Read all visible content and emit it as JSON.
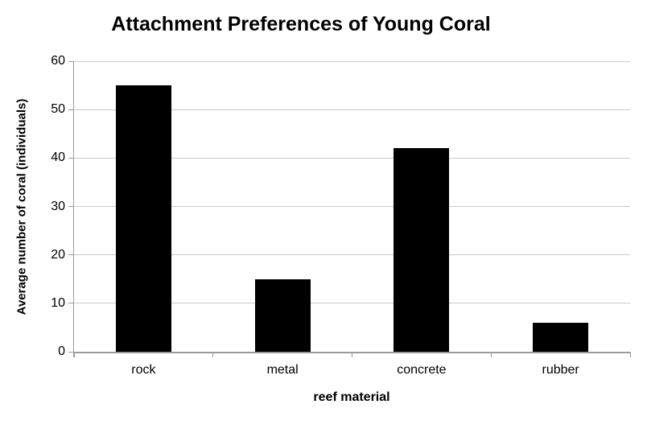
{
  "chart_data": {
    "type": "bar",
    "title": "Attachment Preferences of Young Coral",
    "xlabel": "reef material",
    "ylabel": "Average number of coral (individuals)",
    "categories": [
      "rock",
      "metal",
      "concrete",
      "rubber"
    ],
    "values": [
      55,
      15,
      42,
      6
    ],
    "series": [
      {
        "name": "Average number of coral",
        "values": [
          55,
          15,
          42,
          6
        ]
      }
    ],
    "ylim": [
      0,
      60
    ],
    "yticks": [
      0,
      10,
      20,
      30,
      40,
      50,
      60
    ],
    "grid": "horizontal",
    "legend": "none",
    "bar_color": "#000000",
    "axis_color": "#9b9b9b",
    "gridline_color": "#c9c9c9",
    "text_color": "#000000",
    "background_color": "#ffffff"
  }
}
